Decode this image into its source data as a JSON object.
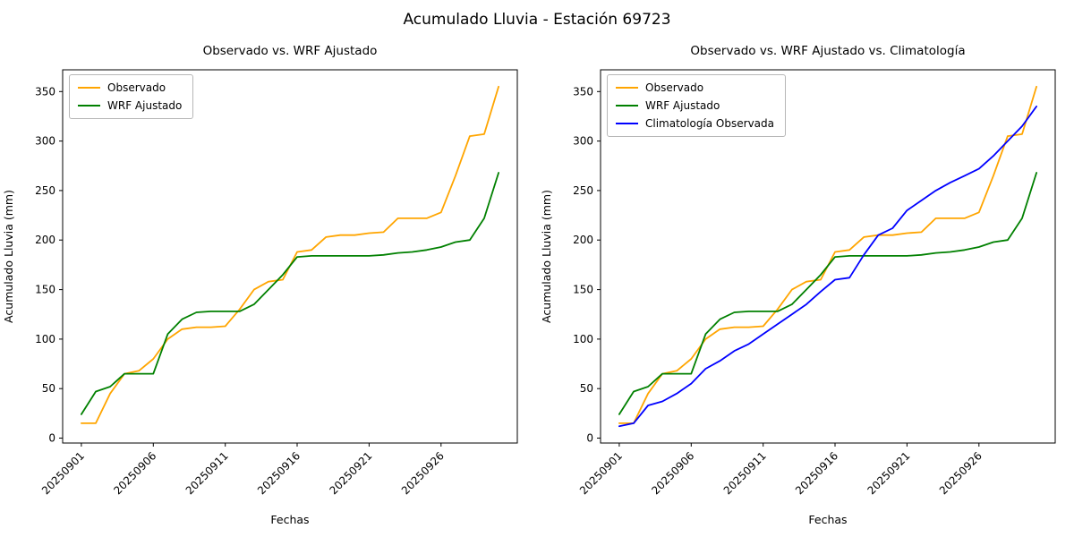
{
  "figure": {
    "title": "Acumulado Lluvia - Estación 69723"
  },
  "chart_data": {
    "type": "line",
    "xlabel": "Fechas",
    "ylabel": "Acumulado Lluvia (mm)",
    "ylim": [
      -5,
      372
    ],
    "y_ticks": [
      0,
      50,
      100,
      150,
      200,
      250,
      300,
      350
    ],
    "grid": false,
    "legend_position": "upper left",
    "x": [
      "20250901",
      "20250902",
      "20250903",
      "20250904",
      "20250905",
      "20250906",
      "20250907",
      "20250908",
      "20250909",
      "20250910",
      "20250911",
      "20250912",
      "20250913",
      "20250914",
      "20250915",
      "20250916",
      "20250917",
      "20250918",
      "20250919",
      "20250920",
      "20250921",
      "20250922",
      "20250923",
      "20250924",
      "20250925",
      "20250926",
      "20250927",
      "20250928",
      "20250929",
      "20250930"
    ],
    "x_tick_labels": [
      "20250901",
      "20250906",
      "20250911",
      "20250916",
      "20250921",
      "20250926"
    ],
    "x_tick_indices": [
      0,
      5,
      10,
      15,
      20,
      25
    ],
    "charts": [
      {
        "title": "Observado vs. WRF Ajustado",
        "series": [
          {
            "name": "Observado",
            "color": "#ffa500",
            "values": [
              15,
              15,
              45,
              65,
              68,
              80,
              100,
              110,
              112,
              112,
              113,
              130,
              150,
              158,
              160,
              188,
              190,
              203,
              205,
              205,
              207,
              208,
              222,
              222,
              222,
              228,
              265,
              305,
              307,
              355
            ]
          },
          {
            "name": "WRF Ajustado",
            "color": "#008000",
            "values": [
              24,
              47,
              52,
              65,
              65,
              65,
              105,
              120,
              127,
              128,
              128,
              128,
              135,
              150,
              165,
              183,
              184,
              184,
              184,
              184,
              184,
              185,
              187,
              188,
              190,
              193,
              198,
              200,
              222,
              268
            ]
          }
        ]
      },
      {
        "title": "Observado vs. WRF Ajustado vs. Climatología",
        "series": [
          {
            "name": "Observado",
            "color": "#ffa500",
            "values": [
              15,
              15,
              45,
              65,
              68,
              80,
              100,
              110,
              112,
              112,
              113,
              130,
              150,
              158,
              160,
              188,
              190,
              203,
              205,
              205,
              207,
              208,
              222,
              222,
              222,
              228,
              265,
              305,
              307,
              355
            ]
          },
          {
            "name": "WRF Ajustado",
            "color": "#008000",
            "values": [
              24,
              47,
              52,
              65,
              65,
              65,
              105,
              120,
              127,
              128,
              128,
              128,
              135,
              150,
              165,
              183,
              184,
              184,
              184,
              184,
              184,
              185,
              187,
              188,
              190,
              193,
              198,
              200,
              222,
              268
            ]
          },
          {
            "name": "Climatología Observada",
            "color": "#0000ff",
            "values": [
              12,
              15,
              33,
              37,
              45,
              55,
              70,
              78,
              88,
              95,
              105,
              115,
              125,
              135,
              148,
              160,
              162,
              185,
              205,
              212,
              230,
              240,
              250,
              258,
              265,
              272,
              285,
              300,
              315,
              335
            ]
          }
        ]
      }
    ]
  }
}
